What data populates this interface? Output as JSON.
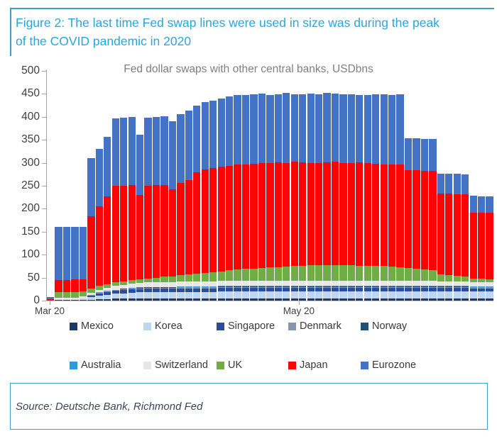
{
  "figure": {
    "title_line1": "Figure 2: The last time Fed swap lines were used in size was during the peak",
    "title_line2": "of the COVID pandemic in 2020",
    "source": "Source: Deutsche Bank, Richmond Fed",
    "accent_border_color": "#3da1c6",
    "title_text_color": "#27a7df"
  },
  "chart_data": {
    "type": "bar",
    "stacked": true,
    "title": "Fed dollar swaps with other central banks, USDbns",
    "ylabel": "",
    "xlabel": "",
    "ylim": [
      0,
      500
    ],
    "grid": false,
    "legend_position": "bottom",
    "y_ticks": [
      0,
      50,
      100,
      150,
      200,
      250,
      300,
      350,
      400,
      450,
      500
    ],
    "x_ticks": [
      {
        "label": "Mar 20",
        "pos": 0.008
      },
      {
        "label": "May 20",
        "pos": 0.565
      }
    ],
    "legend_rows": [
      [
        "Mexico",
        "Korea",
        "Singapore",
        "Denmark",
        "Norway"
      ],
      [
        "Australia",
        "Switzerland",
        "UK",
        "Japan",
        "Eurozone"
      ]
    ],
    "series": [
      {
        "name": "Mexico",
        "color": "#1F3864",
        "values": [
          0,
          1,
          1,
          1,
          1,
          2,
          3,
          3,
          4,
          4,
          4,
          4,
          4,
          4,
          4,
          4,
          4,
          4,
          4,
          4,
          4,
          4,
          4,
          4,
          4,
          4,
          4,
          4,
          4,
          4,
          4,
          4,
          4,
          4,
          4,
          4,
          4,
          4,
          4,
          4,
          4,
          4,
          4,
          4,
          4,
          4,
          4,
          4,
          4,
          4,
          4,
          4,
          4,
          4,
          4
        ]
      },
      {
        "name": "Korea",
        "color": "#BDD7EE",
        "values": [
          0,
          0,
          0,
          0,
          3,
          6,
          8,
          10,
          11,
          12,
          13,
          14,
          15,
          15,
          15,
          15,
          15,
          15,
          15,
          15,
          15,
          16,
          16,
          16,
          16,
          16,
          16,
          16,
          16,
          16,
          16,
          16,
          16,
          16,
          16,
          16,
          16,
          16,
          16,
          16,
          16,
          16,
          16,
          16,
          16,
          16,
          16,
          16,
          16,
          16,
          16,
          16,
          16,
          16,
          16
        ]
      },
      {
        "name": "Singapore",
        "color": "#2B4B9B",
        "values": [
          0,
          0,
          0,
          0,
          1,
          3,
          5,
          6,
          6,
          7,
          7,
          7,
          7,
          7,
          7,
          7,
          8,
          8,
          8,
          8,
          8,
          8,
          8,
          8,
          8,
          8,
          8,
          8,
          8,
          8,
          8,
          8,
          8,
          8,
          8,
          8,
          8,
          8,
          8,
          8,
          8,
          8,
          8,
          8,
          8,
          8,
          8,
          8,
          8,
          8,
          8,
          8,
          7,
          7,
          7
        ]
      },
      {
        "name": "Denmark",
        "color": "#8496B0",
        "values": [
          0,
          0,
          0,
          0,
          0,
          1,
          2,
          2,
          2,
          2,
          2,
          2,
          2,
          2,
          2,
          2,
          2,
          2,
          2,
          2,
          2,
          2,
          2,
          2,
          2,
          2,
          2,
          2,
          2,
          2,
          2,
          2,
          2,
          2,
          2,
          2,
          2,
          2,
          2,
          2,
          2,
          2,
          2,
          2,
          2,
          2,
          2,
          2,
          2,
          2,
          2,
          2,
          2,
          2,
          2
        ]
      },
      {
        "name": "Norway",
        "color": "#1F4E79",
        "values": [
          0,
          0,
          0,
          0,
          0,
          0,
          0,
          0,
          1,
          1,
          1,
          1,
          1,
          1,
          1,
          1,
          1,
          1,
          1,
          1,
          1,
          1,
          1,
          1,
          1,
          1,
          1,
          1,
          1,
          1,
          1,
          1,
          1,
          1,
          1,
          1,
          1,
          1,
          1,
          1,
          1,
          1,
          1,
          1,
          1,
          1,
          1,
          1,
          1,
          1,
          1,
          1,
          1,
          1,
          1
        ]
      },
      {
        "name": "Australia",
        "color": "#2D9BD8",
        "values": [
          0,
          0,
          0,
          0,
          0,
          0,
          0,
          0,
          0,
          0,
          1,
          1,
          1,
          1,
          1,
          1,
          1,
          1,
          1,
          1,
          1,
          1,
          1,
          1,
          1,
          1,
          1,
          1,
          1,
          1,
          1,
          1,
          1,
          1,
          1,
          1,
          1,
          1,
          1,
          1,
          1,
          1,
          1,
          1,
          1,
          1,
          1,
          1,
          1,
          1,
          1,
          1,
          1,
          1,
          1
        ]
      },
      {
        "name": "Switzerland",
        "color": "#E7E7E7",
        "values": [
          0,
          5,
          5,
          5,
          5,
          5,
          6,
          7,
          8,
          8,
          9,
          9,
          10,
          10,
          10,
          10,
          11,
          11,
          11,
          11,
          11,
          12,
          12,
          12,
          12,
          12,
          12,
          12,
          12,
          12,
          12,
          12,
          12,
          12,
          12,
          12,
          12,
          12,
          12,
          12,
          12,
          12,
          12,
          12,
          11,
          11,
          11,
          11,
          10,
          10,
          10,
          10,
          10,
          10,
          10
        ]
      },
      {
        "name": "UK",
        "color": "#70AD47",
        "values": [
          0,
          12,
          12,
          13,
          10,
          9,
          8,
          8,
          8,
          8,
          8,
          8,
          8,
          10,
          12,
          13,
          13,
          15,
          17,
          18,
          20,
          20,
          22,
          24,
          25,
          26,
          27,
          28,
          29,
          30,
          31,
          32,
          33,
          33,
          34,
          34,
          33,
          33,
          32,
          32,
          31,
          31,
          30,
          29,
          28,
          27,
          25,
          23,
          16,
          14,
          12,
          10,
          7,
          7,
          6
        ]
      },
      {
        "name": "Japan",
        "color": "#FA0505",
        "values": [
          3,
          27,
          27,
          27,
          26,
          158,
          174,
          191,
          210,
          208,
          206,
          184,
          202,
          201,
          200,
          189,
          201,
          205,
          221,
          225,
          226,
          228,
          228,
          228,
          228,
          228,
          228,
          228,
          228,
          226,
          227,
          225,
          223,
          222,
          223,
          224,
          223,
          222,
          225,
          224,
          223,
          222,
          222,
          223,
          213,
          214,
          215,
          217,
          175,
          177,
          178,
          180,
          144,
          143,
          144
        ]
      },
      {
        "name": "Eurozone",
        "color": "#4472C4",
        "values": [
          5,
          115,
          115,
          115,
          115,
          126,
          125,
          129,
          147,
          148,
          149,
          132,
          148,
          149,
          149,
          148,
          150,
          151,
          145,
          147,
          148,
          148,
          150,
          151,
          151,
          152,
          152,
          148,
          149,
          152,
          148,
          148,
          151,
          151,
          151,
          149,
          150,
          150,
          147,
          147,
          152,
          152,
          152,
          154,
          69,
          69,
          69,
          69,
          44,
          43,
          44,
          43,
          36,
          36,
          36
        ]
      }
    ]
  }
}
